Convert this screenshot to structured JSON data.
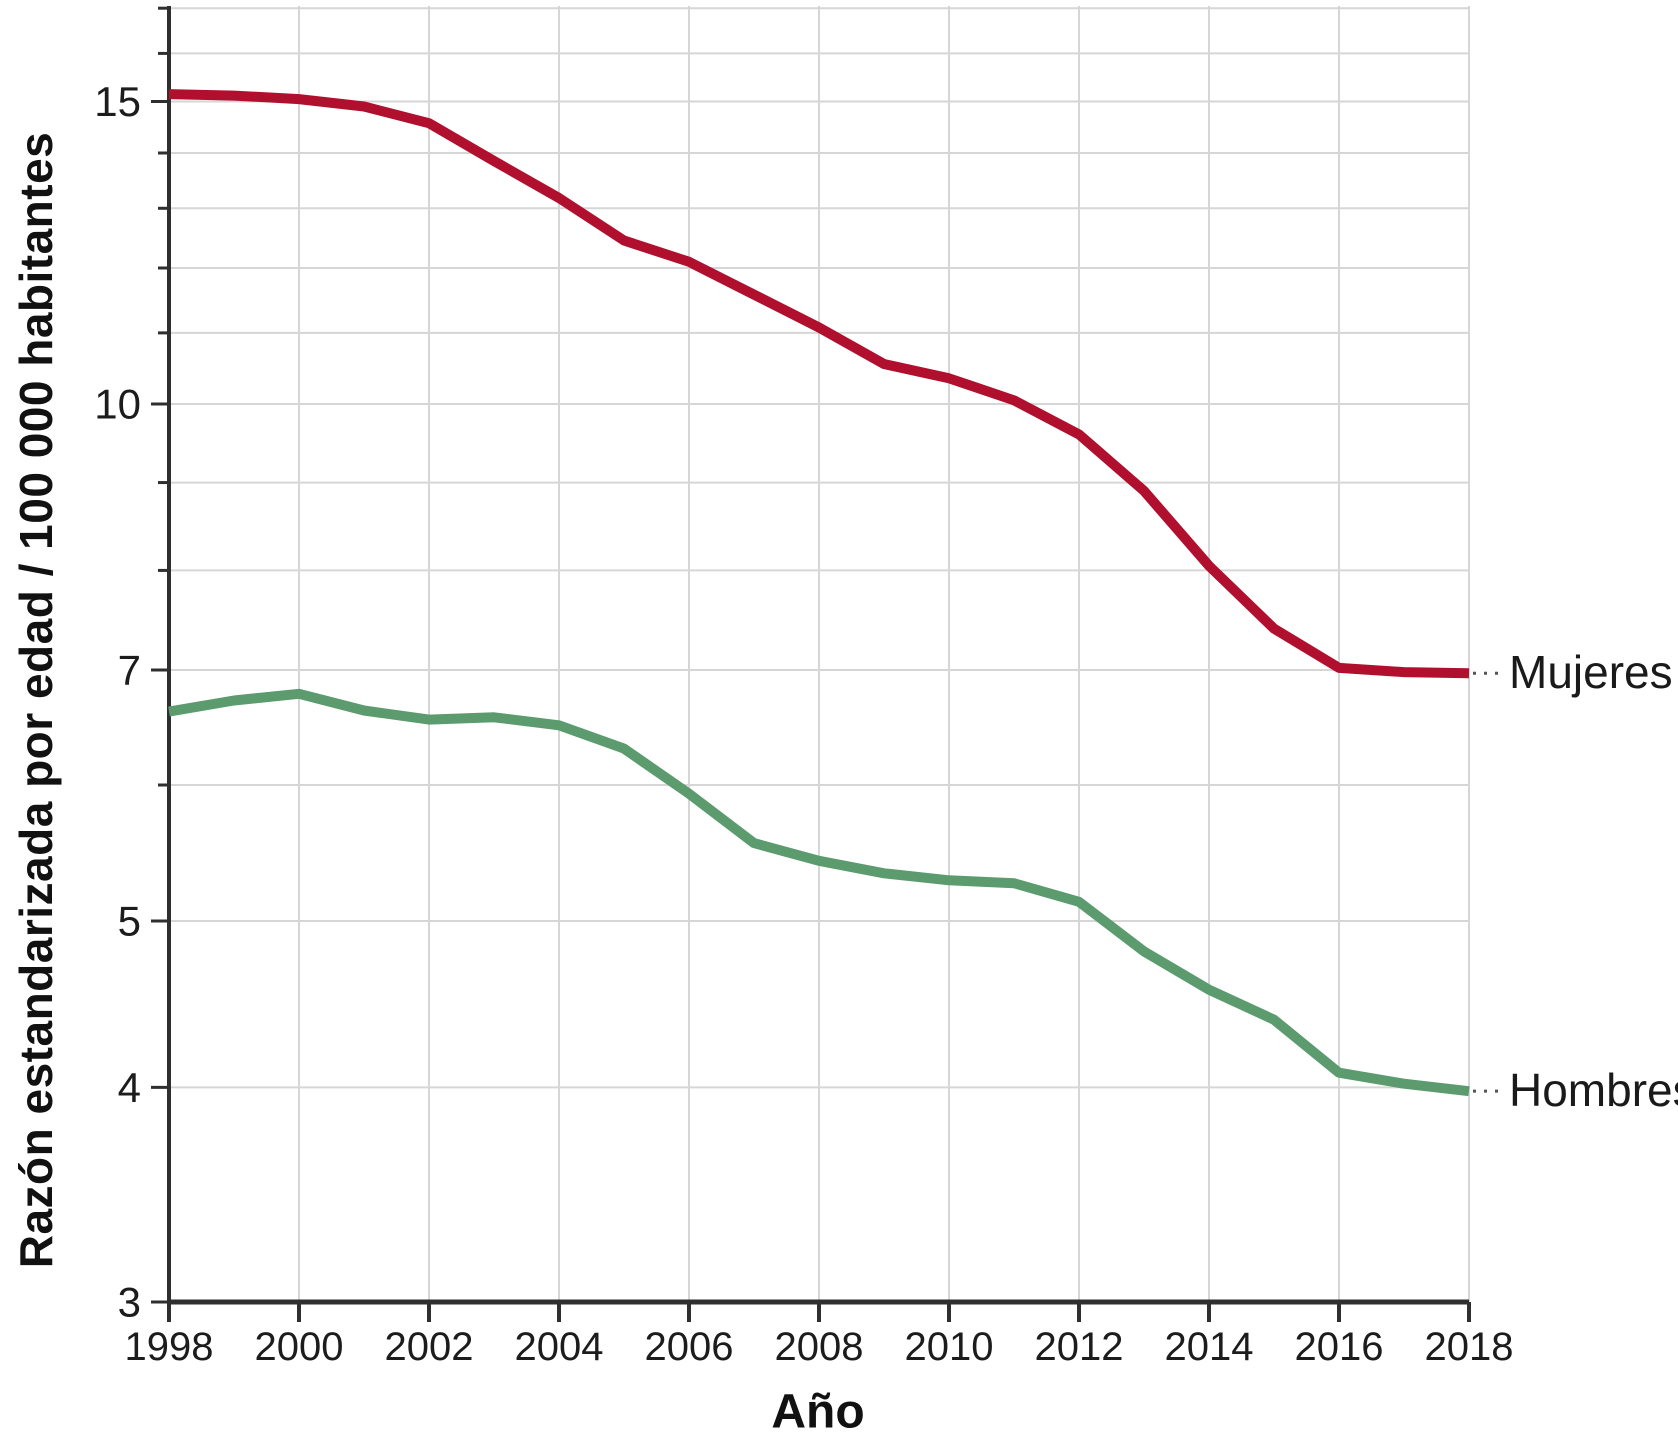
{
  "chart_data": {
    "type": "line",
    "title": "",
    "xlabel": "Año",
    "ylabel": "Razón estandarizada por edad / 100 000 habitantes",
    "yscale": "log",
    "ylim": [
      3,
      17.05
    ],
    "grid": true,
    "legend_position": "right-direct-labels",
    "x": [
      1998,
      1999,
      2000,
      2001,
      2002,
      2003,
      2004,
      2005,
      2006,
      2007,
      2008,
      2009,
      2010,
      2011,
      2012,
      2013,
      2014,
      2015,
      2016,
      2017,
      2018
    ],
    "x_ticks": [
      1998,
      2000,
      2002,
      2004,
      2006,
      2008,
      2010,
      2012,
      2014,
      2016,
      2018
    ],
    "y_tick_labels": [
      15,
      10,
      7,
      5,
      4,
      3
    ],
    "y_grid_values": [
      3,
      4,
      5,
      6,
      7,
      8,
      9,
      10,
      11,
      12,
      13,
      14,
      15,
      16,
      17
    ],
    "series": [
      {
        "name": "Mujeres",
        "color": "#b00f2d",
        "values": [
          15.15,
          15.12,
          15.05,
          14.9,
          14.57,
          13.85,
          13.18,
          12.45,
          12.1,
          11.58,
          11.08,
          10.55,
          10.35,
          10.05,
          9.6,
          8.9,
          8.05,
          7.4,
          7.02,
          6.98,
          6.97
        ]
      },
      {
        "name": "Hombres",
        "color": "#5b9b6e",
        "values": [
          6.62,
          6.72,
          6.78,
          6.63,
          6.55,
          6.57,
          6.5,
          6.3,
          5.93,
          5.55,
          5.42,
          5.33,
          5.28,
          5.26,
          5.13,
          4.8,
          4.56,
          4.38,
          4.08,
          4.02,
          3.98
        ]
      }
    ],
    "colors": {
      "grid": "#d6d6d6",
      "axis": "#2f2f2f",
      "tick_text": "#1c1c1c",
      "label_text": "#111111",
      "leader": "#555555",
      "background": "#ffffff"
    }
  }
}
